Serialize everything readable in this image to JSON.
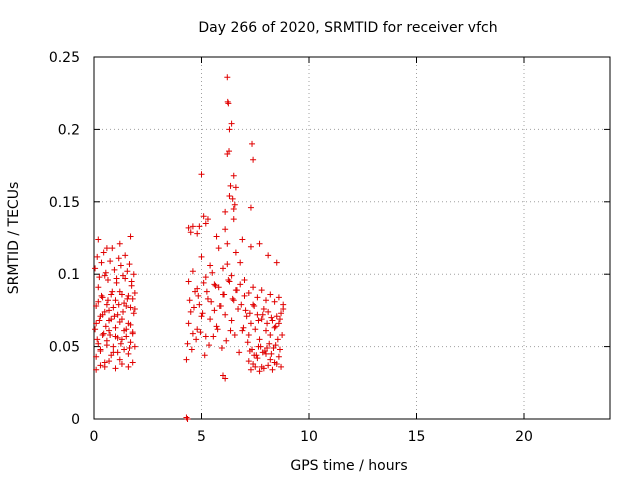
{
  "chart_data": {
    "type": "scatter",
    "title": "Day 266 of 2020, SRMTID for receiver vfch",
    "xlabel": "GPS time / hours",
    "ylabel": "SRMTID / TECUs",
    "xlim": [
      0,
      24
    ],
    "ylim": [
      0,
      0.25
    ],
    "xticks": [
      0,
      5,
      10,
      15,
      20
    ],
    "xtick_labels": [
      "0",
      "5",
      "10",
      "15",
      "20"
    ],
    "yticks": [
      0,
      0.05,
      0.1,
      0.15,
      0.2,
      0.25
    ],
    "ytick_labels": [
      "0",
      "0.05",
      "0.1",
      "0.15",
      "0.2",
      "0.25"
    ],
    "grid": true,
    "marker": "+",
    "color": "#e00000",
    "series": [
      {
        "x": [
          0.05,
          0.1,
          0.15,
          0.2,
          0.25,
          0.3,
          0.35,
          0.4,
          0.45,
          0.5,
          0.55,
          0.6,
          0.65,
          0.7,
          0.75,
          0.8,
          0.85,
          0.9,
          0.95,
          1.0,
          1.05,
          1.1,
          1.15,
          1.2,
          1.25,
          1.3,
          1.35,
          1.4,
          1.45,
          1.5,
          1.55,
          1.6,
          1.65,
          1.7,
          1.75,
          1.8,
          1.85,
          1.9,
          0.1,
          0.2,
          0.3,
          0.4,
          0.5,
          0.6,
          0.7,
          0.8,
          0.9,
          1.0,
          1.1,
          1.2,
          1.3,
          1.4,
          1.5,
          1.6,
          1.7,
          1.8,
          1.9,
          0.05,
          0.15,
          0.25,
          0.35,
          0.45,
          0.55,
          0.65,
          0.75,
          0.85,
          0.95,
          1.05,
          1.15,
          1.25,
          1.35,
          1.45,
          1.55,
          1.65,
          1.75,
          1.85,
          0.1,
          0.3,
          0.5,
          0.7,
          0.9,
          1.1,
          1.3,
          1.5,
          1.7,
          1.9,
          0.2,
          0.4,
          0.6,
          0.8,
          1.0,
          1.2,
          1.4,
          1.6,
          1.8,
          0.1,
          0.3,
          0.5,
          0.7,
          1.0,
          1.3,
          1.6,
          1.8,
          0.2,
          0.6,
          1.2,
          1.7,
          4.3,
          4.4,
          4.5,
          4.6,
          4.7,
          4.8,
          4.9,
          5.0,
          5.1,
          5.2,
          5.3,
          5.4,
          5.5,
          5.6,
          5.7,
          5.8,
          5.9,
          6.0,
          6.1,
          6.2,
          6.3,
          6.4,
          6.5,
          6.6,
          6.7,
          6.8,
          6.9,
          7.0,
          7.1,
          7.2,
          7.3,
          7.4,
          7.5,
          7.6,
          7.7,
          7.8,
          7.9,
          8.0,
          8.1,
          8.2,
          8.3,
          8.4,
          8.5,
          8.6,
          8.7,
          8.8,
          4.35,
          4.55,
          4.75,
          4.95,
          5.15,
          5.35,
          5.55,
          5.75,
          5.95,
          6.15,
          6.35,
          6.55,
          6.75,
          6.95,
          7.15,
          7.35,
          7.55,
          7.75,
          7.95,
          8.15,
          8.35,
          8.55,
          8.75,
          4.4,
          4.6,
          4.8,
          5.0,
          5.2,
          5.4,
          5.6,
          5.8,
          6.0,
          6.2,
          6.4,
          6.6,
          6.8,
          7.0,
          7.2,
          7.4,
          7.6,
          7.8,
          8.0,
          8.2,
          8.4,
          8.6,
          8.8,
          4.45,
          4.65,
          4.85,
          5.05,
          5.25,
          5.45,
          5.65,
          5.85,
          6.05,
          6.25,
          6.45,
          6.65,
          6.85,
          7.05,
          7.25,
          7.45,
          7.65,
          7.85,
          8.05,
          8.25,
          8.45,
          8.65,
          4.5,
          4.9,
          5.3,
          5.7,
          6.1,
          6.5,
          6.9,
          7.3,
          7.7,
          8.1,
          8.5,
          7.2,
          7.4,
          7.6,
          7.8,
          8.0,
          8.2,
          8.4,
          8.6,
          7.3,
          7.5,
          7.7,
          7.9,
          8.1,
          8.3,
          8.5,
          8.7,
          7.25,
          7.45,
          7.65,
          7.85,
          8.05,
          8.25,
          8.45,
          8.65,
          6.2,
          6.25,
          6.22,
          6.3,
          6.28,
          6.2,
          6.4,
          6.5,
          6.6,
          6.35,
          6.45,
          6.55,
          7.35,
          7.4,
          7.3,
          6.1,
          6.3,
          6.5,
          5.0,
          5.1,
          5.2,
          4.4,
          4.6,
          4.8,
          6.0,
          6.1,
          4.3,
          4.35
        ],
        "y": [
          0.062,
          0.078,
          0.055,
          0.091,
          0.068,
          0.048,
          0.085,
          0.072,
          0.059,
          0.099,
          0.064,
          0.051,
          0.082,
          0.075,
          0.058,
          0.069,
          0.088,
          0.046,
          0.071,
          0.063,
          0.094,
          0.056,
          0.079,
          0.067,
          0.052,
          0.086,
          0.074,
          0.061,
          0.097,
          0.057,
          0.083,
          0.066,
          0.049,
          0.077,
          0.092,
          0.06,
          0.073,
          0.087,
          0.043,
          0.052,
          0.047,
          0.058,
          0.039,
          0.054,
          0.061,
          0.044,
          0.05,
          0.057,
          0.046,
          0.041,
          0.055,
          0.048,
          0.062,
          0.045,
          0.053,
          0.059,
          0.05,
          0.104,
          0.112,
          0.098,
          0.108,
          0.115,
          0.101,
          0.096,
          0.109,
          0.118,
          0.103,
          0.097,
          0.111,
          0.106,
          0.099,
          0.113,
          0.102,
          0.107,
          0.095,
          0.1,
          0.066,
          0.071,
          0.074,
          0.068,
          0.077,
          0.072,
          0.069,
          0.078,
          0.065,
          0.076,
          0.081,
          0.084,
          0.079,
          0.086,
          0.082,
          0.088,
          0.08,
          0.085,
          0.083,
          0.034,
          0.037,
          0.036,
          0.04,
          0.035,
          0.038,
          0.036,
          0.039,
          0.124,
          0.118,
          0.121,
          0.126,
          0.041,
          0.066,
          0.074,
          0.059,
          0.088,
          0.062,
          0.079,
          0.071,
          0.094,
          0.057,
          0.083,
          0.069,
          0.101,
          0.075,
          0.064,
          0.091,
          0.078,
          0.086,
          0.072,
          0.107,
          0.095,
          0.068,
          0.082,
          0.089,
          0.076,
          0.093,
          0.061,
          0.085,
          0.071,
          0.058,
          0.066,
          0.079,
          0.062,
          0.072,
          0.055,
          0.069,
          0.076,
          0.061,
          0.074,
          0.058,
          0.068,
          0.063,
          0.071,
          0.066,
          0.073,
          0.076,
          0.052,
          0.048,
          0.055,
          0.06,
          0.044,
          0.051,
          0.057,
          0.062,
          0.049,
          0.054,
          0.061,
          0.058,
          0.046,
          0.063,
          0.053,
          0.048,
          0.044,
          0.05,
          0.047,
          0.052,
          0.049,
          0.055,
          0.058,
          0.095,
          0.102,
          0.09,
          0.112,
          0.098,
          0.106,
          0.093,
          0.118,
          0.104,
          0.121,
          0.099,
          0.115,
          0.108,
          0.096,
          0.087,
          0.091,
          0.084,
          0.089,
          0.082,
          0.086,
          0.081,
          0.084,
          0.079,
          0.082,
          0.077,
          0.085,
          0.073,
          0.088,
          0.081,
          0.092,
          0.078,
          0.086,
          0.096,
          0.083,
          0.089,
          0.079,
          0.075,
          0.073,
          0.078,
          0.068,
          0.072,
          0.066,
          0.07,
          0.064,
          0.069,
          0.129,
          0.133,
          0.138,
          0.126,
          0.131,
          0.145,
          0.124,
          0.119,
          0.121,
          0.113,
          0.108,
          0.04,
          0.038,
          0.042,
          0.036,
          0.045,
          0.041,
          0.039,
          0.043,
          0.034,
          0.036,
          0.033,
          0.035,
          0.037,
          0.034,
          0.038,
          0.036,
          0.047,
          0.044,
          0.05,
          0.046,
          0.049,
          0.045,
          0.051,
          0.048,
          0.236,
          0.218,
          0.219,
          0.2,
          0.185,
          0.183,
          0.204,
          0.168,
          0.16,
          0.161,
          0.152,
          0.148,
          0.19,
          0.179,
          0.146,
          0.143,
          0.154,
          0.138,
          0.169,
          0.14,
          0.135,
          0.132,
          0.133,
          0.128,
          0.03,
          0.028,
          0.001,
          0.0
        ]
      }
    ]
  }
}
